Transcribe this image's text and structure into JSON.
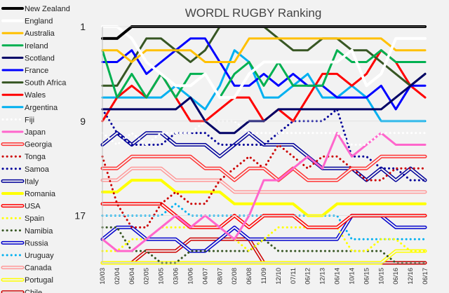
{
  "chart_data": {
    "type": "line",
    "title": "WORDL RUGBY Ranking",
    "y_ticks": [
      "1",
      "9",
      "17"
    ],
    "y_axis": "rank",
    "y_inverted": true,
    "ylim": [
      1,
      21
    ],
    "x": [
      "10/03",
      "02/04",
      "06/04",
      "02/05",
      "10/05",
      "03/06",
      "10/06",
      "04/07",
      "08/07",
      "02/08",
      "06/08",
      "11/09",
      "12/10",
      "07/11",
      "06/12",
      "12/13",
      "06/14",
      "10/14",
      "06/15",
      "10/15",
      "06/16",
      "12/16",
      "06/17"
    ],
    "legend_position": "left",
    "grid": false,
    "series": [
      {
        "name": "New Zealand",
        "color": "#000000",
        "dash": "solid",
        "width": 4,
        "values": [
          2,
          2,
          1,
          1,
          1,
          1,
          1,
          1,
          1,
          1,
          1,
          1,
          1,
          1,
          1,
          1,
          1,
          1,
          1,
          1,
          1,
          1,
          1
        ]
      },
      {
        "name": "England",
        "color": "#ffffff",
        "dash": "solid",
        "width": 4,
        "values": [
          1,
          1,
          2,
          4,
          5,
          6,
          6,
          5,
          7,
          7,
          5,
          4,
          4,
          4,
          4,
          4,
          4,
          3,
          6,
          5,
          2,
          2,
          2
        ]
      },
      {
        "name": "Australia",
        "color": "#ffc000",
        "dash": "solid",
        "width": 3,
        "values": [
          3,
          3,
          4,
          3,
          3,
          3,
          3,
          4,
          4,
          4,
          2,
          2,
          2,
          2,
          2,
          2,
          2,
          2,
          2,
          2,
          3,
          3,
          3
        ]
      },
      {
        "name": "Ireland",
        "color": "#00b050",
        "dash": "solid",
        "width": 3,
        "values": [
          3,
          7,
          5,
          7,
          5,
          7,
          5,
          5,
          7,
          5,
          4,
          6,
          4,
          6,
          6,
          6,
          3,
          4,
          4,
          3,
          4,
          4,
          4
        ]
      },
      {
        "name": "Scotland",
        "color": "#000066",
        "dash": "solid",
        "width": 3,
        "values": [
          8,
          8,
          8,
          8,
          8,
          8,
          7,
          9,
          10,
          10,
          9,
          9,
          8,
          8,
          8,
          8,
          8,
          8,
          8,
          8,
          7,
          6,
          5
        ]
      },
      {
        "name": "France",
        "color": "#0000ff",
        "dash": "solid",
        "width": 3,
        "values": [
          4,
          4,
          3,
          5,
          4,
          3,
          2,
          2,
          4,
          6,
          6,
          5,
          6,
          5,
          6,
          6,
          7,
          7,
          7,
          6,
          8,
          6,
          6
        ]
      },
      {
        "name": "South Africa",
        "color": "#375623",
        "dash": "solid",
        "width": 3,
        "values": [
          6,
          6,
          4,
          2,
          2,
          3,
          4,
          3,
          1,
          1,
          1,
          1,
          2,
          3,
          3,
          2,
          2,
          3,
          3,
          4,
          5,
          6,
          5
        ]
      },
      {
        "name": "Wales",
        "color": "#ff0000",
        "dash": "solid",
        "width": 3,
        "values": [
          9,
          7,
          6,
          7,
          5,
          7,
          9,
          9,
          8,
          7,
          7,
          9,
          8,
          9,
          7,
          5,
          5,
          6,
          5,
          3,
          4,
          6,
          7
        ]
      },
      {
        "name": "Argentina",
        "color": "#00b0f0",
        "dash": "solid",
        "width": 3,
        "values": [
          7,
          7,
          7,
          7,
          7,
          6,
          7,
          8,
          6,
          3,
          4,
          7,
          7,
          6,
          5,
          7,
          7,
          6,
          7,
          9,
          9,
          9,
          9
        ]
      },
      {
        "name": "Fiji",
        "color": "#ffffff",
        "dash": "dot",
        "width": 3,
        "values": [
          10,
          11,
          10,
          11,
          10,
          10,
          10,
          9,
          9,
          9,
          10,
          10,
          10,
          10,
          10,
          10,
          10,
          11,
          11,
          10,
          10,
          10,
          10
        ]
      },
      {
        "name": "Japan",
        "color": "#ff66cc",
        "dash": "solid",
        "width": 3,
        "values": [
          19,
          20,
          20,
          19,
          18,
          17,
          18,
          17,
          18,
          19,
          17,
          14,
          14,
          13,
          12,
          13,
          10,
          12,
          11,
          10,
          11,
          11,
          11
        ]
      },
      {
        "name": "Georgia",
        "color": "#ff3333",
        "dash": "double",
        "width": 4,
        "values": [
          13,
          13,
          12,
          12,
          12,
          12,
          12,
          13,
          13,
          14,
          13,
          13,
          14,
          13,
          14,
          14,
          14,
          13,
          13,
          12,
          12,
          12,
          12
        ]
      },
      {
        "name": "Tonga",
        "color": "#cc0000",
        "dash": "dot",
        "width": 3,
        "values": [
          12,
          16,
          18,
          18,
          16,
          15,
          16,
          16,
          14,
          13,
          12,
          13,
          11,
          12,
          13,
          12,
          12,
          13,
          14,
          14,
          13,
          13,
          13
        ]
      },
      {
        "name": "Samoa",
        "color": "#000099",
        "dash": "dot",
        "width": 3,
        "values": [
          8,
          10,
          11,
          11,
          11,
          10,
          10,
          10,
          11,
          11,
          11,
          11,
          10,
          9,
          9,
          9,
          8,
          12,
          12,
          13,
          13,
          14,
          14
        ]
      },
      {
        "name": "Italy",
        "color": "#000099",
        "dash": "double",
        "width": 4,
        "values": [
          11,
          10,
          11,
          10,
          10,
          11,
          11,
          11,
          12,
          11,
          10,
          11,
          11,
          11,
          12,
          13,
          13,
          13,
          14,
          13,
          14,
          13,
          14
        ]
      },
      {
        "name": "Romania",
        "color": "#ffff00",
        "dash": "solid",
        "width": 4,
        "values": [
          15,
          15,
          14,
          14,
          14,
          15,
          15,
          15,
          15,
          16,
          16,
          16,
          16,
          16,
          17,
          17,
          16,
          16,
          16,
          16,
          16,
          16,
          16
        ]
      },
      {
        "name": "USA",
        "color": "#ff0000",
        "dash": "double",
        "width": 4,
        "values": [
          16,
          16,
          16,
          16,
          16,
          17,
          18,
          18,
          18,
          17,
          18,
          17,
          17,
          17,
          18,
          18,
          18,
          17,
          17,
          17,
          17,
          17,
          17
        ]
      },
      {
        "name": "Spain",
        "color": "#ffff00",
        "dash": "dot",
        "width": 3,
        "values": [
          20,
          20,
          19,
          19,
          18,
          18,
          18,
          18,
          18,
          19,
          20,
          19,
          18,
          18,
          18,
          18,
          18,
          20,
          20,
          19,
          19,
          20,
          20
        ]
      },
      {
        "name": "Namibia",
        "color": "#375623",
        "dash": "dot",
        "width": 3,
        "values": [
          18,
          18,
          20,
          20,
          21,
          21,
          20,
          20,
          20,
          20,
          20,
          19,
          20,
          20,
          20,
          20,
          20,
          20,
          20,
          20,
          21,
          21,
          21
        ]
      },
      {
        "name": "Russia",
        "color": "#0000cc",
        "dash": "double",
        "width": 4,
        "values": [
          19,
          18,
          18,
          19,
          19,
          19,
          20,
          20,
          19,
          18,
          19,
          19,
          19,
          19,
          19,
          19,
          19,
          17,
          17,
          17,
          18,
          18,
          18
        ]
      },
      {
        "name": "Uruguay",
        "color": "#00b0f0",
        "dash": "dot",
        "width": 3,
        "values": [
          17,
          17,
          17,
          17,
          17,
          16,
          17,
          17,
          17,
          17,
          17,
          17,
          17,
          17,
          17,
          17,
          17,
          19,
          19,
          19,
          19,
          19,
          19
        ]
      },
      {
        "name": "Canada",
        "color": "#ff9999",
        "dash": "double",
        "width": 4,
        "values": [
          14,
          14,
          13,
          13,
          13,
          14,
          14,
          14,
          14,
          15,
          15,
          15,
          15,
          15,
          15,
          15,
          15,
          15,
          15,
          15,
          15,
          15,
          15
        ]
      },
      {
        "name": "Portugal",
        "color": "#ffff00",
        "dash": "double",
        "width": 4,
        "values": [
          21,
          21,
          21,
          21,
          21,
          21,
          21,
          21,
          21,
          21,
          21,
          21,
          21,
          21,
          21,
          21,
          21,
          21,
          21,
          21,
          20,
          20,
          20
        ]
      },
      {
        "name": "Chile",
        "color": "#cc0000",
        "dash": "double",
        "width": 4,
        "values": [
          21,
          21,
          21,
          20,
          20,
          20,
          19,
          19,
          19,
          19,
          19,
          21,
          21,
          21,
          21,
          21,
          21,
          21,
          21,
          21,
          21,
          21,
          21
        ]
      }
    ]
  }
}
